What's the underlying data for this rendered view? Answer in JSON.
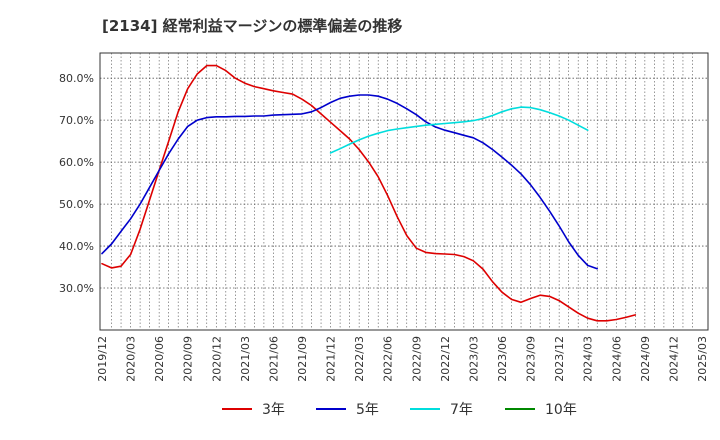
{
  "chart_data": {
    "type": "line",
    "title": "[2134]  経常利益マージンの標準偏差の推移",
    "xlabel": "",
    "ylabel": "",
    "ylim": [
      20,
      86
    ],
    "y_ticks": [
      {
        "value": 30,
        "label": "30.0%"
      },
      {
        "value": 40,
        "label": "40.0%"
      },
      {
        "value": 50,
        "label": "50.0%"
      },
      {
        "value": 60,
        "label": "60.0%"
      },
      {
        "value": 70,
        "label": "70.0%"
      },
      {
        "value": 80,
        "label": "80.0%"
      }
    ],
    "x_ticks": [
      "2019/12",
      "2020/03",
      "2020/06",
      "2020/09",
      "2020/12",
      "2021/03",
      "2021/06",
      "2021/09",
      "2021/12",
      "2022/03",
      "2022/06",
      "2022/09",
      "2022/12",
      "2023/03",
      "2023/06",
      "2023/09",
      "2023/12",
      "2024/03",
      "2024/06",
      "2024/09",
      "2024/12",
      "2025/03"
    ],
    "grid": true,
    "legend_position": "bottom",
    "series": [
      {
        "name": "3年",
        "color": "#dd0000",
        "points": [
          [
            "2019/12",
            35.8
          ],
          [
            "2020/01",
            34.8
          ],
          [
            "2020/02",
            35.2
          ],
          [
            "2020/03",
            38.0
          ],
          [
            "2020/04",
            44.0
          ],
          [
            "2020/05",
            51.0
          ],
          [
            "2020/06",
            58.0
          ],
          [
            "2020/07",
            65.0
          ],
          [
            "2020/08",
            72.0
          ],
          [
            "2020/09",
            77.5
          ],
          [
            "2020/10",
            81.0
          ],
          [
            "2020/11",
            83.0
          ],
          [
            "2020/12",
            83.0
          ],
          [
            "2021/01",
            81.8
          ],
          [
            "2021/02",
            80.0
          ],
          [
            "2021/03",
            78.8
          ],
          [
            "2021/04",
            78.0
          ],
          [
            "2021/05",
            77.5
          ],
          [
            "2021/06",
            77.0
          ],
          [
            "2021/07",
            76.6
          ],
          [
            "2021/08",
            76.2
          ],
          [
            "2021/09",
            75.0
          ],
          [
            "2021/10",
            73.5
          ],
          [
            "2021/11",
            71.5
          ],
          [
            "2021/12",
            69.5
          ],
          [
            "2022/01",
            67.5
          ],
          [
            "2022/02",
            65.5
          ],
          [
            "2022/03",
            63.0
          ],
          [
            "2022/04",
            60.0
          ],
          [
            "2022/05",
            56.5
          ],
          [
            "2022/06",
            52.0
          ],
          [
            "2022/07",
            47.0
          ],
          [
            "2022/08",
            42.5
          ],
          [
            "2022/09",
            39.5
          ],
          [
            "2022/10",
            38.5
          ],
          [
            "2022/11",
            38.2
          ],
          [
            "2022/12",
            38.1
          ],
          [
            "2023/01",
            38.0
          ],
          [
            "2023/02",
            37.5
          ],
          [
            "2023/03",
            36.5
          ],
          [
            "2023/04",
            34.5
          ],
          [
            "2023/05",
            31.5
          ],
          [
            "2023/06",
            29.0
          ],
          [
            "2023/07",
            27.3
          ],
          [
            "2023/08",
            26.6
          ],
          [
            "2023/09",
            27.5
          ],
          [
            "2023/10",
            28.3
          ],
          [
            "2023/11",
            28.0
          ],
          [
            "2023/12",
            27.0
          ],
          [
            "2024/01",
            25.5
          ],
          [
            "2024/02",
            24.0
          ],
          [
            "2024/03",
            22.8
          ],
          [
            "2024/04",
            22.2
          ],
          [
            "2024/05",
            22.2
          ],
          [
            "2024/06",
            22.5
          ],
          [
            "2024/07",
            23.0
          ],
          [
            "2024/08",
            23.6
          ]
        ]
      },
      {
        "name": "5年",
        "color": "#0000cc",
        "points": [
          [
            "2019/12",
            38.2
          ],
          [
            "2020/01",
            40.5
          ],
          [
            "2020/02",
            43.5
          ],
          [
            "2020/03",
            46.5
          ],
          [
            "2020/04",
            50.0
          ],
          [
            "2020/05",
            54.0
          ],
          [
            "2020/06",
            58.0
          ],
          [
            "2020/07",
            62.0
          ],
          [
            "2020/08",
            65.5
          ],
          [
            "2020/09",
            68.5
          ],
          [
            "2020/10",
            70.0
          ],
          [
            "2020/11",
            70.6
          ],
          [
            "2020/12",
            70.8
          ],
          [
            "2021/01",
            70.8
          ],
          [
            "2021/02",
            70.9
          ],
          [
            "2021/03",
            70.9
          ],
          [
            "2021/04",
            71.0
          ],
          [
            "2021/05",
            71.0
          ],
          [
            "2021/06",
            71.2
          ],
          [
            "2021/07",
            71.3
          ],
          [
            "2021/08",
            71.4
          ],
          [
            "2021/09",
            71.5
          ],
          [
            "2021/10",
            72.0
          ],
          [
            "2021/11",
            73.0
          ],
          [
            "2021/12",
            74.2
          ],
          [
            "2022/01",
            75.2
          ],
          [
            "2022/02",
            75.7
          ],
          [
            "2022/03",
            76.0
          ],
          [
            "2022/04",
            76.0
          ],
          [
            "2022/05",
            75.7
          ],
          [
            "2022/06",
            75.0
          ],
          [
            "2022/07",
            74.0
          ],
          [
            "2022/08",
            72.7
          ],
          [
            "2022/09",
            71.3
          ],
          [
            "2022/10",
            69.6
          ],
          [
            "2022/11",
            68.4
          ],
          [
            "2022/12",
            67.6
          ],
          [
            "2023/01",
            67.0
          ],
          [
            "2023/02",
            66.4
          ],
          [
            "2023/03",
            65.8
          ],
          [
            "2023/04",
            64.6
          ],
          [
            "2023/05",
            63.0
          ],
          [
            "2023/06",
            61.2
          ],
          [
            "2023/07",
            59.3
          ],
          [
            "2023/08",
            57.2
          ],
          [
            "2023/09",
            54.6
          ],
          [
            "2023/10",
            51.6
          ],
          [
            "2023/11",
            48.3
          ],
          [
            "2023/12",
            44.8
          ],
          [
            "2024/01",
            41.0
          ],
          [
            "2024/02",
            37.8
          ],
          [
            "2024/03",
            35.4
          ],
          [
            "2024/04",
            34.6
          ]
        ]
      },
      {
        "name": "7年",
        "color": "#00dddd",
        "points": [
          [
            "2021/12",
            62.2
          ],
          [
            "2022/01",
            63.2
          ],
          [
            "2022/02",
            64.3
          ],
          [
            "2022/03",
            65.3
          ],
          [
            "2022/04",
            66.2
          ],
          [
            "2022/05",
            66.9
          ],
          [
            "2022/06",
            67.5
          ],
          [
            "2022/07",
            67.9
          ],
          [
            "2022/08",
            68.2
          ],
          [
            "2022/09",
            68.5
          ],
          [
            "2022/10",
            68.8
          ],
          [
            "2022/11",
            69.0
          ],
          [
            "2022/12",
            69.2
          ],
          [
            "2023/01",
            69.4
          ],
          [
            "2023/02",
            69.6
          ],
          [
            "2023/03",
            69.9
          ],
          [
            "2023/04",
            70.4
          ],
          [
            "2023/05",
            71.1
          ],
          [
            "2023/06",
            72.0
          ],
          [
            "2023/07",
            72.7
          ],
          [
            "2023/08",
            73.1
          ],
          [
            "2023/09",
            73.0
          ],
          [
            "2023/10",
            72.5
          ],
          [
            "2023/11",
            71.8
          ],
          [
            "2023/12",
            71.0
          ],
          [
            "2024/01",
            70.0
          ],
          [
            "2024/02",
            68.8
          ],
          [
            "2024/03",
            67.6
          ]
        ]
      },
      {
        "name": "10年",
        "color": "#008800",
        "points": []
      }
    ]
  }
}
